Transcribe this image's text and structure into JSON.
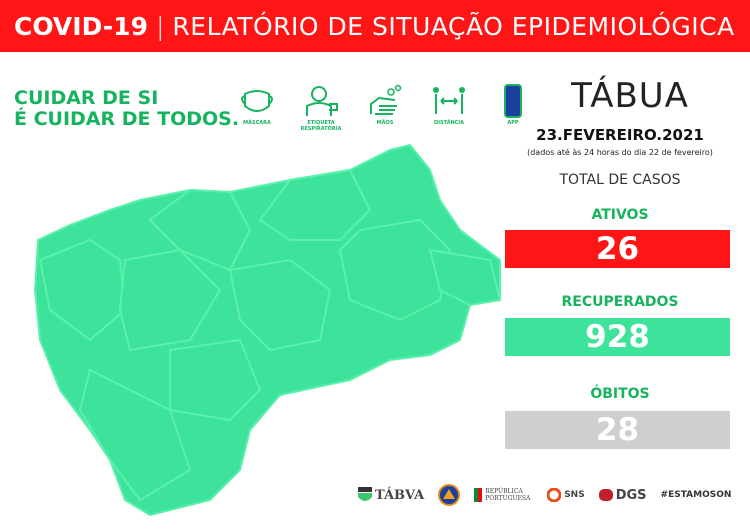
{
  "header": {
    "title": "COVID-19",
    "subtitle": "RELATÓRIO DE SITUAÇÃO EPIDEMIOLÓGICA"
  },
  "slogan": {
    "line1": "CUIDAR DE SI",
    "line2": "É CUIDAR DE TODOS."
  },
  "icons": [
    {
      "icon": "mask-icon",
      "label": "MÁSCARA"
    },
    {
      "icon": "respiratory-etiquette-icon",
      "label": "ETIQUETA RESPIRATÓRIA"
    },
    {
      "icon": "hands-icon",
      "label": "MÃOS"
    },
    {
      "icon": "distance-icon",
      "label": "DISTÂNCIA"
    },
    {
      "icon": "phone-app-icon",
      "label": "APP"
    }
  ],
  "place": "TÁBUA",
  "date": "23.FEVEREIRO.2021",
  "note": "(dados até às 24 horas do dia 22 de fevereiro)",
  "total_label": "TOTAL DE CASOS",
  "stats": {
    "active": {
      "label": "ATIVOS",
      "value": "26",
      "color": "#ff1515"
    },
    "recovered": {
      "label": "RECUPERADOS",
      "value": "928",
      "color": "#3ee39b"
    },
    "deaths": {
      "label": "ÓBITOS",
      "value": "28",
      "color": "#cfcfcf"
    }
  },
  "colors": {
    "green_text": "#17b35e",
    "map": "#3ee39b"
  },
  "logos": {
    "tabua": "TÁBVA",
    "republica": "REPÚBLICA PORTUGUESA",
    "sns": "SNS",
    "dgs": "DGS",
    "estamoson": "#ESTAMOSON"
  }
}
